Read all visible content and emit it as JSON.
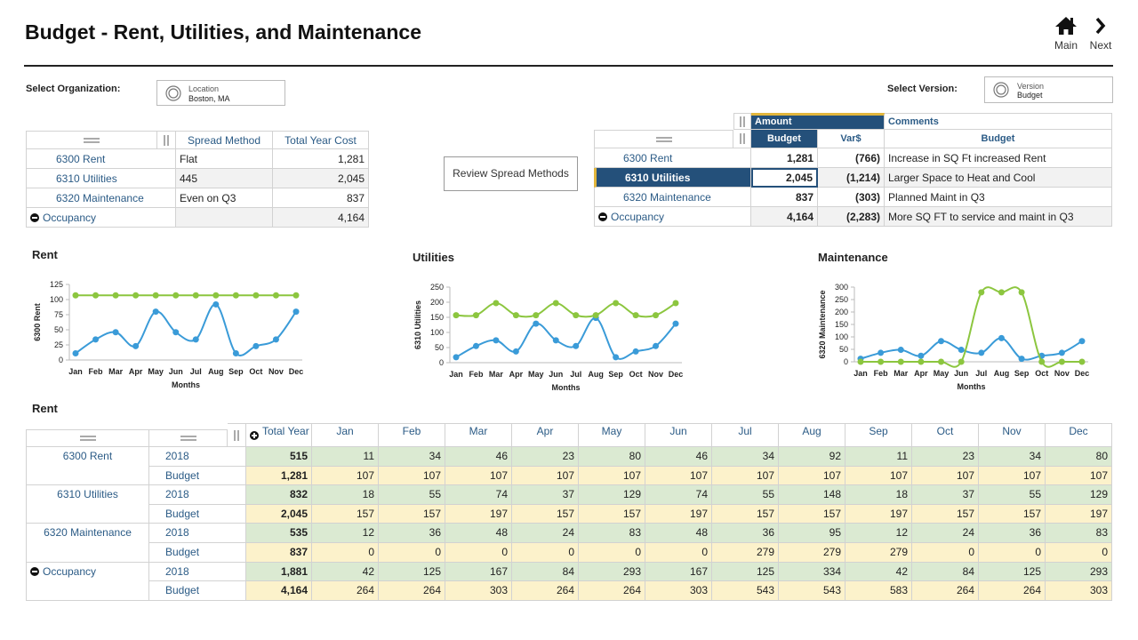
{
  "header": {
    "title": "Budget - Rent, Utilities, and Maintenance",
    "nav": [
      "Main",
      "Next"
    ]
  },
  "organization": {
    "label": "Select Organization:",
    "field_label": "Location",
    "field_value": "Boston, MA"
  },
  "version": {
    "label": "Select Version:",
    "field_label": "Version",
    "field_value": "Budget"
  },
  "spread_table": {
    "headers": [
      "Spread Method",
      "Total Year Cost"
    ],
    "rows": [
      {
        "name": "6300 Rent",
        "method": "Flat",
        "total": "1,281"
      },
      {
        "name": "6310 Utilities",
        "method": "445",
        "total": "2,045"
      },
      {
        "name": "6320 Maintenance",
        "method": "Even on Q3",
        "total": 837
      }
    ],
    "total": {
      "name": "Occupancy",
      "total": "4,164"
    }
  },
  "review_button": "Review Spread Methods",
  "comments_table": {
    "group_headers": [
      "Amount",
      "Comments"
    ],
    "headers": [
      "Budget",
      "Var$",
      "Budget"
    ],
    "rows": [
      {
        "name": "6300 Rent",
        "budget": "1,281",
        "var": "(766)",
        "comment": "Increase in SQ Ft increased Rent"
      },
      {
        "name": "6310 Utilities",
        "budget": "2,045",
        "var": "(1,214)",
        "comment": "Larger Space to Heat and Cool"
      },
      {
        "name": "6320 Maintenance",
        "budget": 837,
        "var": "(303)",
        "comment": "Planned Maint in Q3"
      }
    ],
    "total": {
      "name": "Occupancy",
      "budget": "4,164",
      "var": "(2,283)",
      "comment": "More SQ FT to service and maint in Q3"
    }
  },
  "chart_data": [
    {
      "type": "line",
      "title": "Rent",
      "y_label": "6300 Rent",
      "x_label": "Months",
      "categories": [
        "Jan",
        "Feb",
        "Mar",
        "Apr",
        "May",
        "Jun",
        "Jul",
        "Aug",
        "Sep",
        "Oct",
        "Nov",
        "Dec"
      ],
      "ylim": [
        0,
        125
      ],
      "yticks": [
        0,
        25,
        50,
        75,
        100,
        125
      ],
      "series": [
        {
          "color": "#3a9bd8",
          "values": [
            11,
            34,
            46,
            23,
            80,
            46,
            34,
            92,
            11,
            23,
            34,
            80
          ]
        },
        {
          "color": "#8cc63f",
          "values": [
            107,
            107,
            107,
            107,
            107,
            107,
            107,
            107,
            107,
            107,
            107,
            107
          ]
        }
      ]
    },
    {
      "type": "line",
      "title": "Utilities",
      "y_label": "6310 Utilities",
      "x_label": "Months",
      "categories": [
        "Jan",
        "Feb",
        "Mar",
        "Apr",
        "May",
        "Jun",
        "Jul",
        "Aug",
        "Sep",
        "Oct",
        "Nov",
        "Dec"
      ],
      "ylim": [
        0,
        250
      ],
      "yticks": [
        0,
        50,
        100,
        150,
        200,
        250
      ],
      "series": [
        {
          "color": "#3a9bd8",
          "values": [
            18,
            55,
            74,
            37,
            129,
            74,
            55,
            148,
            18,
            37,
            55,
            129
          ]
        },
        {
          "color": "#8cc63f",
          "values": [
            157,
            157,
            197,
            157,
            157,
            197,
            157,
            157,
            197,
            157,
            157,
            197
          ]
        }
      ]
    },
    {
      "type": "line",
      "title": "Maintenance",
      "y_label": "6320 Maintenance",
      "x_label": "Months",
      "categories": [
        "Jan",
        "Feb",
        "Mar",
        "Apr",
        "May",
        "Jun",
        "Jul",
        "Aug",
        "Sep",
        "Oct",
        "Nov",
        "Dec"
      ],
      "ylim": [
        0,
        300
      ],
      "yticks": [
        0,
        50,
        100,
        150,
        200,
        250,
        300
      ],
      "series": [
        {
          "color": "#3a9bd8",
          "values": [
            12,
            36,
            48,
            24,
            83,
            48,
            36,
            95,
            12,
            24,
            36,
            83
          ]
        },
        {
          "color": "#8cc63f",
          "values": [
            0,
            0,
            0,
            0,
            0,
            0,
            279,
            279,
            279,
            0,
            0,
            0
          ]
        }
      ]
    }
  ],
  "monthly_table": {
    "title": "Rent",
    "total_header": "Total Year",
    "groups": [
      {
        "name": "6300 Rent",
        "rows": [
          {
            "label": "2018",
            "total": 515,
            "values": [
              11,
              34,
              46,
              23,
              80,
              46,
              34,
              92,
              11,
              23,
              34,
              80
            ]
          },
          {
            "label": "Budget",
            "total": "1,281",
            "values": [
              107,
              107,
              107,
              107,
              107,
              107,
              107,
              107,
              107,
              107,
              107,
              107
            ]
          }
        ]
      },
      {
        "name": "6310 Utilities",
        "rows": [
          {
            "label": "2018",
            "total": 832,
            "values": [
              18,
              55,
              74,
              37,
              129,
              74,
              55,
              148,
              18,
              37,
              55,
              129
            ]
          },
          {
            "label": "Budget",
            "total": "2,045",
            "values": [
              157,
              157,
              197,
              157,
              157,
              197,
              157,
              157,
              197,
              157,
              157,
              197
            ]
          }
        ]
      },
      {
        "name": "6320 Maintenance",
        "rows": [
          {
            "label": "2018",
            "total": 535,
            "values": [
              12,
              36,
              48,
              24,
              83,
              48,
              36,
              95,
              12,
              24,
              36,
              83
            ]
          },
          {
            "label": "Budget",
            "total": 837,
            "values": [
              0,
              0,
              0,
              0,
              0,
              0,
              279,
              279,
              279,
              0,
              0,
              0
            ]
          }
        ]
      }
    ],
    "total": {
      "name": "Occupancy",
      "rows": [
        {
          "label": "2018",
          "total": "1,881",
          "values": [
            42,
            125,
            167,
            84,
            293,
            167,
            125,
            334,
            42,
            84,
            125,
            293
          ]
        },
        {
          "label": "Budget",
          "total": "4,164",
          "values": [
            264,
            264,
            303,
            264,
            264,
            303,
            543,
            543,
            583,
            264,
            264,
            303
          ]
        }
      ]
    }
  }
}
